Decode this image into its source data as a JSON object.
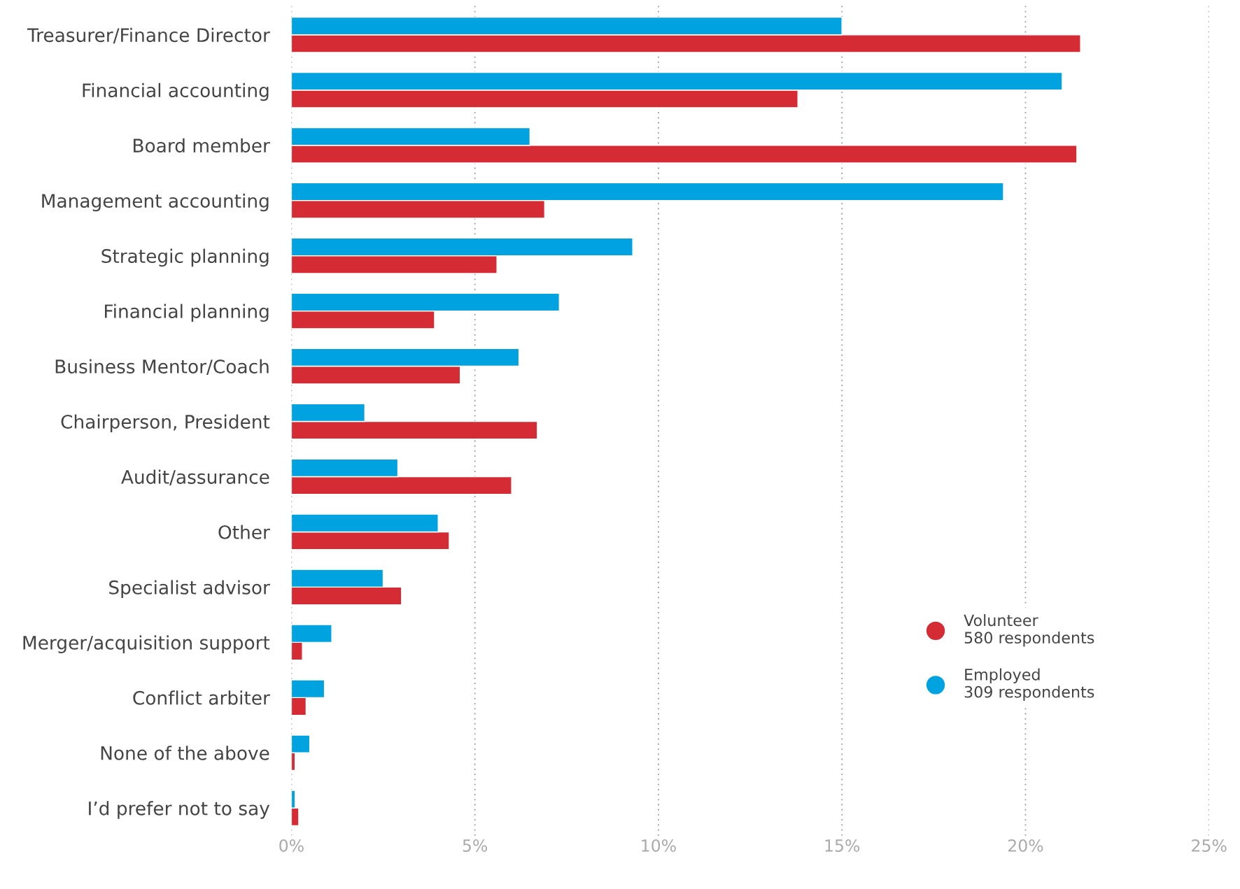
{
  "chart_data": {
    "type": "bar",
    "orientation": "horizontal",
    "categories": [
      "Treasurer/Finance Director",
      "Financial accounting",
      "Board member",
      "Management accounting",
      "Strategic planning",
      "Financial planning",
      "Business Mentor/Coach",
      "Chairperson, President",
      "Audit/assurance",
      "Other",
      "Specialist advisor",
      "Merger/acquisition support",
      "Conflict arbiter",
      "None of the above",
      "I’d prefer not to say"
    ],
    "series": [
      {
        "name": "Volunteer",
        "color": "#d52b35",
        "values": [
          21.5,
          13.8,
          21.4,
          6.9,
          5.6,
          3.9,
          4.6,
          6.7,
          6.0,
          4.3,
          3.0,
          0.3,
          0.4,
          0.1,
          0.2
        ]
      },
      {
        "name": "Employed",
        "color": "#00a3e0",
        "values": [
          15.0,
          21.0,
          6.5,
          19.4,
          9.3,
          7.3,
          6.2,
          2.0,
          2.9,
          4.0,
          2.5,
          1.1,
          0.9,
          0.5,
          0.1
        ]
      }
    ],
    "annotations": [
      "580 respondents",
      "309 respondents"
    ],
    "xlim": [
      0,
      25
    ],
    "xticks": [
      {
        "value": 0,
        "label": "0%"
      },
      {
        "value": 5,
        "label": "5%"
      },
      {
        "value": 10,
        "label": "10%"
      },
      {
        "value": 15,
        "label": "15%"
      },
      {
        "value": 20,
        "label": "20%"
      },
      {
        "value": 25,
        "label": "25%"
      }
    ],
    "grid": "x",
    "legend": "bottom right"
  }
}
